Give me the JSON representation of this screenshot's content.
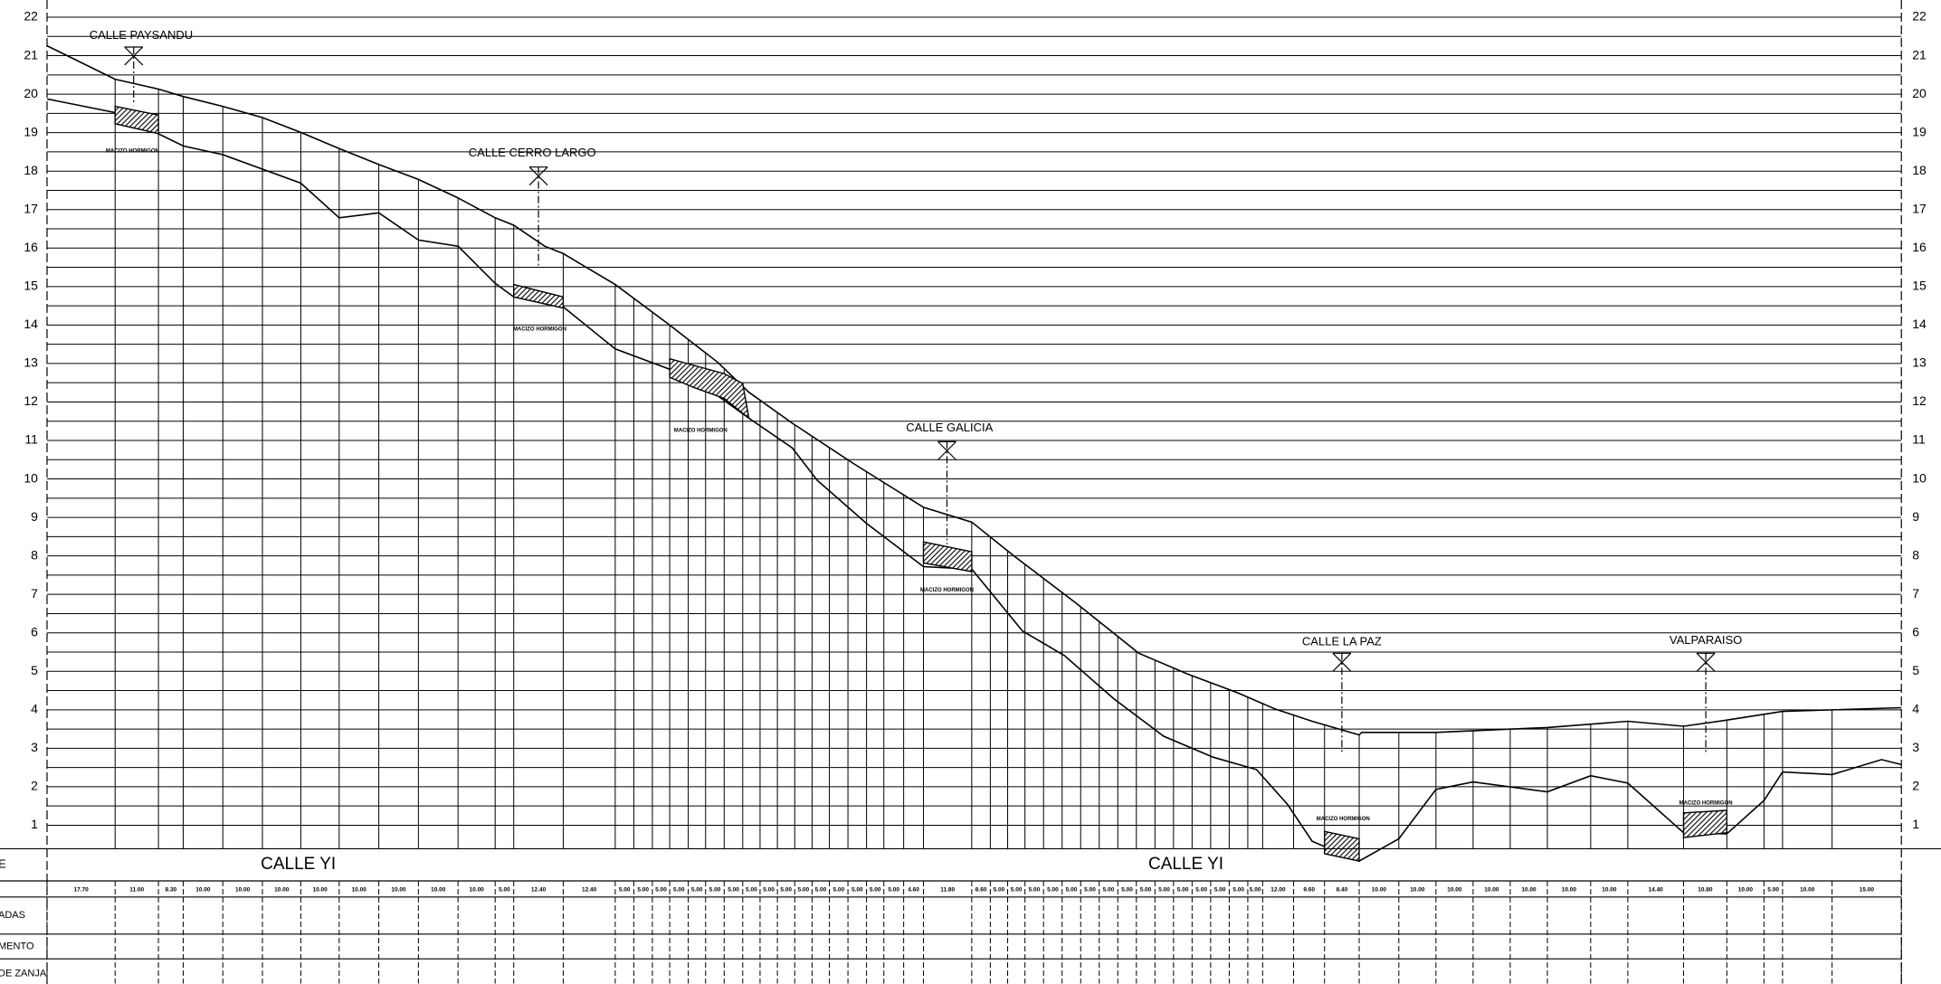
{
  "axis": {
    "levels": [
      1,
      2,
      3,
      4,
      5,
      6,
      7,
      8,
      9,
      10,
      11,
      12,
      13,
      14,
      15,
      16,
      17,
      18,
      19,
      20,
      21,
      22
    ]
  },
  "streets": [
    {
      "label": "CALLE PAYSANDU"
    },
    {
      "label": "CALLE CERRO LARGO"
    },
    {
      "label": "CALLE GALICIA"
    },
    {
      "label": "CALLE LA PAZ"
    },
    {
      "label": "VALPARAISO"
    }
  ],
  "blocks": [
    {
      "label": "MACIZO HORMIGON"
    },
    {
      "label": "MACIZO HORMIGON"
    },
    {
      "label": "MACIZO HORMIGON"
    },
    {
      "label": "MACIZO HORMIGON"
    },
    {
      "label": "MACIZO HORMIGON"
    },
    {
      "label": "MACIZO HORMIGON"
    }
  ],
  "profile_street": [
    "CALLE YI",
    "CALLE YI"
  ],
  "table": {
    "row_labels": [
      "E",
      "ADAS",
      "MENTO",
      "DE ZANJA"
    ],
    "distances": [
      "17.70",
      "11.00",
      "8.30",
      "10.00",
      "10.00",
      "10.00",
      "10.00",
      "10.00",
      "10.00",
      "10.00",
      "10.00",
      "5.00",
      "12.40",
      "12.40",
      "5.00",
      "5.00",
      "5.00",
      "5.00",
      "5.00",
      "5.00",
      "5.00",
      "5.00",
      "5.00",
      "5.00",
      "5.00",
      "5.00",
      "5.00",
      "5.00",
      "5.00",
      "5.00",
      "4.60",
      "11.80",
      "8.60",
      "5.00",
      "5.00",
      "5.00",
      "5.00",
      "5.00",
      "5.00",
      "5.00",
      "5.00",
      "5.00",
      "5.00",
      "5.00",
      "5.00",
      "5.00",
      "5.00",
      "5.00",
      "12.00",
      "9.60",
      "8.40",
      "10.00",
      "10.00",
      "10.00",
      "10.00",
      "10.00",
      "10.00",
      "10.00",
      "14.40",
      "10.80",
      "10.00",
      "5.00",
      "10.00",
      "15.00"
    ]
  }
}
